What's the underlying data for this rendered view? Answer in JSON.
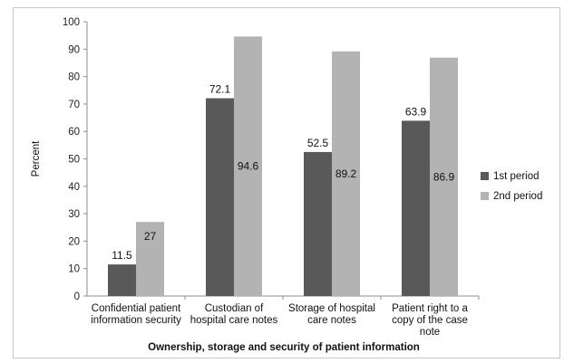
{
  "chart_data": {
    "type": "bar",
    "categories": [
      [
        "Confidential patient",
        "information security"
      ],
      [
        "Custodian of",
        "hospital care notes"
      ],
      [
        "Storage of hospital",
        "care notes"
      ],
      [
        "Patient right to a",
        "copy of the case",
        "note"
      ]
    ],
    "series": [
      {
        "name": "1st period",
        "values": [
          11.5,
          72.1,
          52.5,
          63.9
        ],
        "color": "#595959",
        "labels": [
          "11.5",
          "72.1",
          "52.5",
          "63.9"
        ]
      },
      {
        "name": "2nd period",
        "values": [
          27,
          94.6,
          89.2,
          86.9
        ],
        "color": "#b3b3b3",
        "labels": [
          "27",
          "94.6",
          "89.2",
          "86.9"
        ]
      }
    ],
    "ylabel": "Percent",
    "xlabel": "Ownership, storage and security of patient information",
    "ylim": [
      0,
      100
    ],
    "yticks": [
      0,
      10,
      20,
      30,
      40,
      50,
      60,
      70,
      80,
      90,
      100
    ],
    "grid": false,
    "legend": "right"
  }
}
